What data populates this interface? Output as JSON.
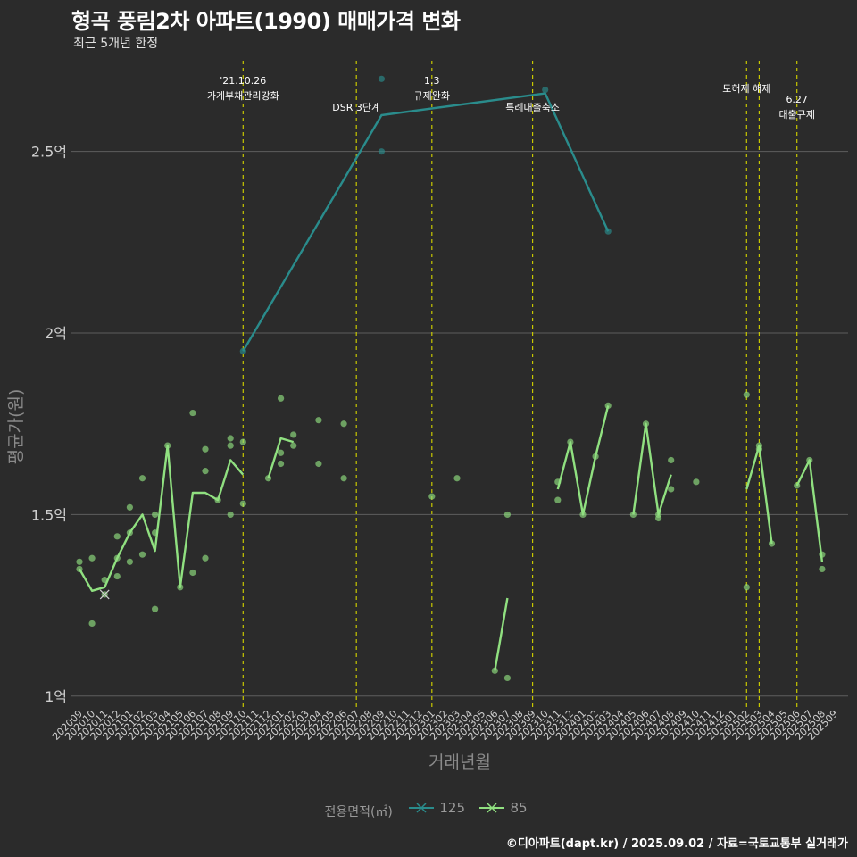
{
  "header": {
    "title": "형곡 풍림2차 아파트(1990) 매매가격 변화",
    "subtitle": "최근 5개년 한정"
  },
  "caption": "©디아파트(dapt.kr) / 2025.09.02 / 자료=국토교통부 실거래가",
  "colors": {
    "background": "#2b2b2b",
    "grid": "#5e5e5e",
    "series_125": "#2a8c8c",
    "series_85": "#90e080",
    "vline": "#c8c800",
    "axis_text": "#cfcfcf",
    "axis_title": "#8a8a8a"
  },
  "chart_data": {
    "type": "line",
    "xlabel": "거래년월",
    "ylabel": "평균가(원)",
    "ylim": [
      0.97,
      2.75
    ],
    "yticks": [
      {
        "value": 1.0,
        "label": "1억"
      },
      {
        "value": 1.5,
        "label": "1.5억"
      },
      {
        "value": 2.0,
        "label": "2억"
      },
      {
        "value": 2.5,
        "label": "2.5억"
      }
    ],
    "categories": [
      "202009",
      "202010",
      "202011",
      "202012",
      "202101",
      "202102",
      "202103",
      "202104",
      "202105",
      "202106",
      "202107",
      "202108",
      "202109",
      "202110",
      "202111",
      "202112",
      "202201",
      "202202",
      "202203",
      "202204",
      "202205",
      "202206",
      "202207",
      "202208",
      "202209",
      "202210",
      "202211",
      "202212",
      "202301",
      "202302",
      "202303",
      "202304",
      "202305",
      "202306",
      "202307",
      "202308",
      "202309",
      "202310",
      "202311",
      "202312",
      "202401",
      "202402",
      "202403",
      "202404",
      "202405",
      "202406",
      "202407",
      "202408",
      "202409",
      "202410",
      "202411",
      "202412",
      "202501",
      "202502",
      "202503",
      "202504",
      "202505",
      "202506",
      "202507",
      "202508",
      "202509"
    ],
    "legend": {
      "title": "전용면적(㎡)",
      "items": [
        {
          "label": "125",
          "color": "#2a8c8c"
        },
        {
          "label": "85",
          "color": "#90e080"
        }
      ]
    },
    "series": [
      {
        "name": "125",
        "color": "#2a8c8c",
        "line": [
          [
            "202110",
            1.95
          ],
          [
            "202209",
            2.6
          ],
          [
            "202310",
            2.66
          ],
          [
            "202403",
            2.28
          ]
        ],
        "points": [
          [
            "202110",
            1.95
          ],
          [
            "202209",
            2.5
          ],
          [
            "202209",
            2.7
          ],
          [
            "202310",
            2.67
          ],
          [
            "202403",
            2.28
          ]
        ]
      },
      {
        "name": "85",
        "color": "#90e080",
        "line_segments": [
          [
            [
              "202009",
              1.35
            ],
            [
              "202010",
              1.29
            ],
            [
              "202011",
              1.3
            ],
            [
              "202012",
              1.38
            ],
            [
              "202101",
              1.45
            ],
            [
              "202102",
              1.5
            ],
            [
              "202103",
              1.4
            ],
            [
              "202104",
              1.69
            ],
            [
              "202105",
              1.3
            ],
            [
              "202106",
              1.56
            ],
            [
              "202107",
              1.56
            ],
            [
              "202108",
              1.54
            ],
            [
              "202109",
              1.65
            ],
            [
              "202110",
              1.61
            ]
          ],
          [
            [
              "202112",
              1.6
            ],
            [
              "202201",
              1.71
            ],
            [
              "202202",
              1.7
            ]
          ],
          [
            [
              "202306",
              1.07
            ],
            [
              "202307",
              1.27
            ]
          ],
          [
            [
              "202311",
              1.57
            ],
            [
              "202312",
              1.7
            ],
            [
              "202401",
              1.5
            ],
            [
              "202402",
              1.66
            ],
            [
              "202403",
              1.8
            ]
          ],
          [
            [
              "202405",
              1.5
            ],
            [
              "202406",
              1.75
            ],
            [
              "202407",
              1.5
            ],
            [
              "202408",
              1.61
            ]
          ],
          [
            [
              "202502",
              1.57
            ],
            [
              "202503",
              1.69
            ],
            [
              "202504",
              1.42
            ]
          ],
          [
            [
              "202506",
              1.58
            ],
            [
              "202507",
              1.65
            ],
            [
              "202508",
              1.37
            ]
          ]
        ],
        "points": [
          [
            "202009",
            1.37
          ],
          [
            "202009",
            1.35
          ],
          [
            "202010",
            1.38
          ],
          [
            "202010",
            1.2
          ],
          [
            "202011",
            1.32
          ],
          [
            "202011",
            1.28
          ],
          [
            "202012",
            1.44
          ],
          [
            "202012",
            1.38
          ],
          [
            "202012",
            1.33
          ],
          [
            "202101",
            1.52
          ],
          [
            "202101",
            1.45
          ],
          [
            "202101",
            1.37
          ],
          [
            "202102",
            1.6
          ],
          [
            "202102",
            1.39
          ],
          [
            "202103",
            1.5
          ],
          [
            "202103",
            1.45
          ],
          [
            "202103",
            1.24
          ],
          [
            "202104",
            1.69
          ],
          [
            "202105",
            1.3
          ],
          [
            "202106",
            1.78
          ],
          [
            "202106",
            1.34
          ],
          [
            "202107",
            1.68
          ],
          [
            "202107",
            1.62
          ],
          [
            "202107",
            1.38
          ],
          [
            "202108",
            1.54
          ],
          [
            "202109",
            1.71
          ],
          [
            "202109",
            1.69
          ],
          [
            "202109",
            1.5
          ],
          [
            "202110",
            1.7
          ],
          [
            "202110",
            1.53
          ],
          [
            "202112",
            1.6
          ],
          [
            "202201",
            1.82
          ],
          [
            "202201",
            1.67
          ],
          [
            "202201",
            1.64
          ],
          [
            "202202",
            1.72
          ],
          [
            "202202",
            1.69
          ],
          [
            "202204",
            1.76
          ],
          [
            "202204",
            1.64
          ],
          [
            "202206",
            1.75
          ],
          [
            "202206",
            1.6
          ],
          [
            "202301",
            1.55
          ],
          [
            "202303",
            1.6
          ],
          [
            "202306",
            1.07
          ],
          [
            "202307",
            1.5
          ],
          [
            "202307",
            1.05
          ],
          [
            "202311",
            1.59
          ],
          [
            "202311",
            1.54
          ],
          [
            "202312",
            1.7
          ],
          [
            "202401",
            1.5
          ],
          [
            "202402",
            1.66
          ],
          [
            "202403",
            1.8
          ],
          [
            "202405",
            1.5
          ],
          [
            "202406",
            1.75
          ],
          [
            "202407",
            1.5
          ],
          [
            "202407",
            1.49
          ],
          [
            "202408",
            1.65
          ],
          [
            "202408",
            1.57
          ],
          [
            "202410",
            1.59
          ],
          [
            "202502",
            1.83
          ],
          [
            "202502",
            1.3
          ],
          [
            "202503",
            1.69
          ],
          [
            "202503",
            1.68
          ],
          [
            "202504",
            1.42
          ],
          [
            "202506",
            1.58
          ],
          [
            "202507",
            1.65
          ],
          [
            "202508",
            1.39
          ],
          [
            "202508",
            1.35
          ]
        ]
      }
    ],
    "events": [
      {
        "date": "202110",
        "label_lines": [
          "'21.10.26",
          "가계부채관리강화"
        ]
      },
      {
        "date": "202207",
        "label_lines": [
          "DSR 3단계"
        ]
      },
      {
        "date": "202301",
        "label_lines": [
          "1.3",
          "규제완화"
        ]
      },
      {
        "date": "202309",
        "label_lines": [
          "특례대출축소"
        ]
      },
      {
        "date": "202502",
        "label_lines": [
          "토허제 해제"
        ]
      },
      {
        "date": "202503",
        "label_lines": []
      },
      {
        "date": "202506",
        "label_lines": [
          "6.27",
          "대출규제"
        ]
      }
    ]
  }
}
